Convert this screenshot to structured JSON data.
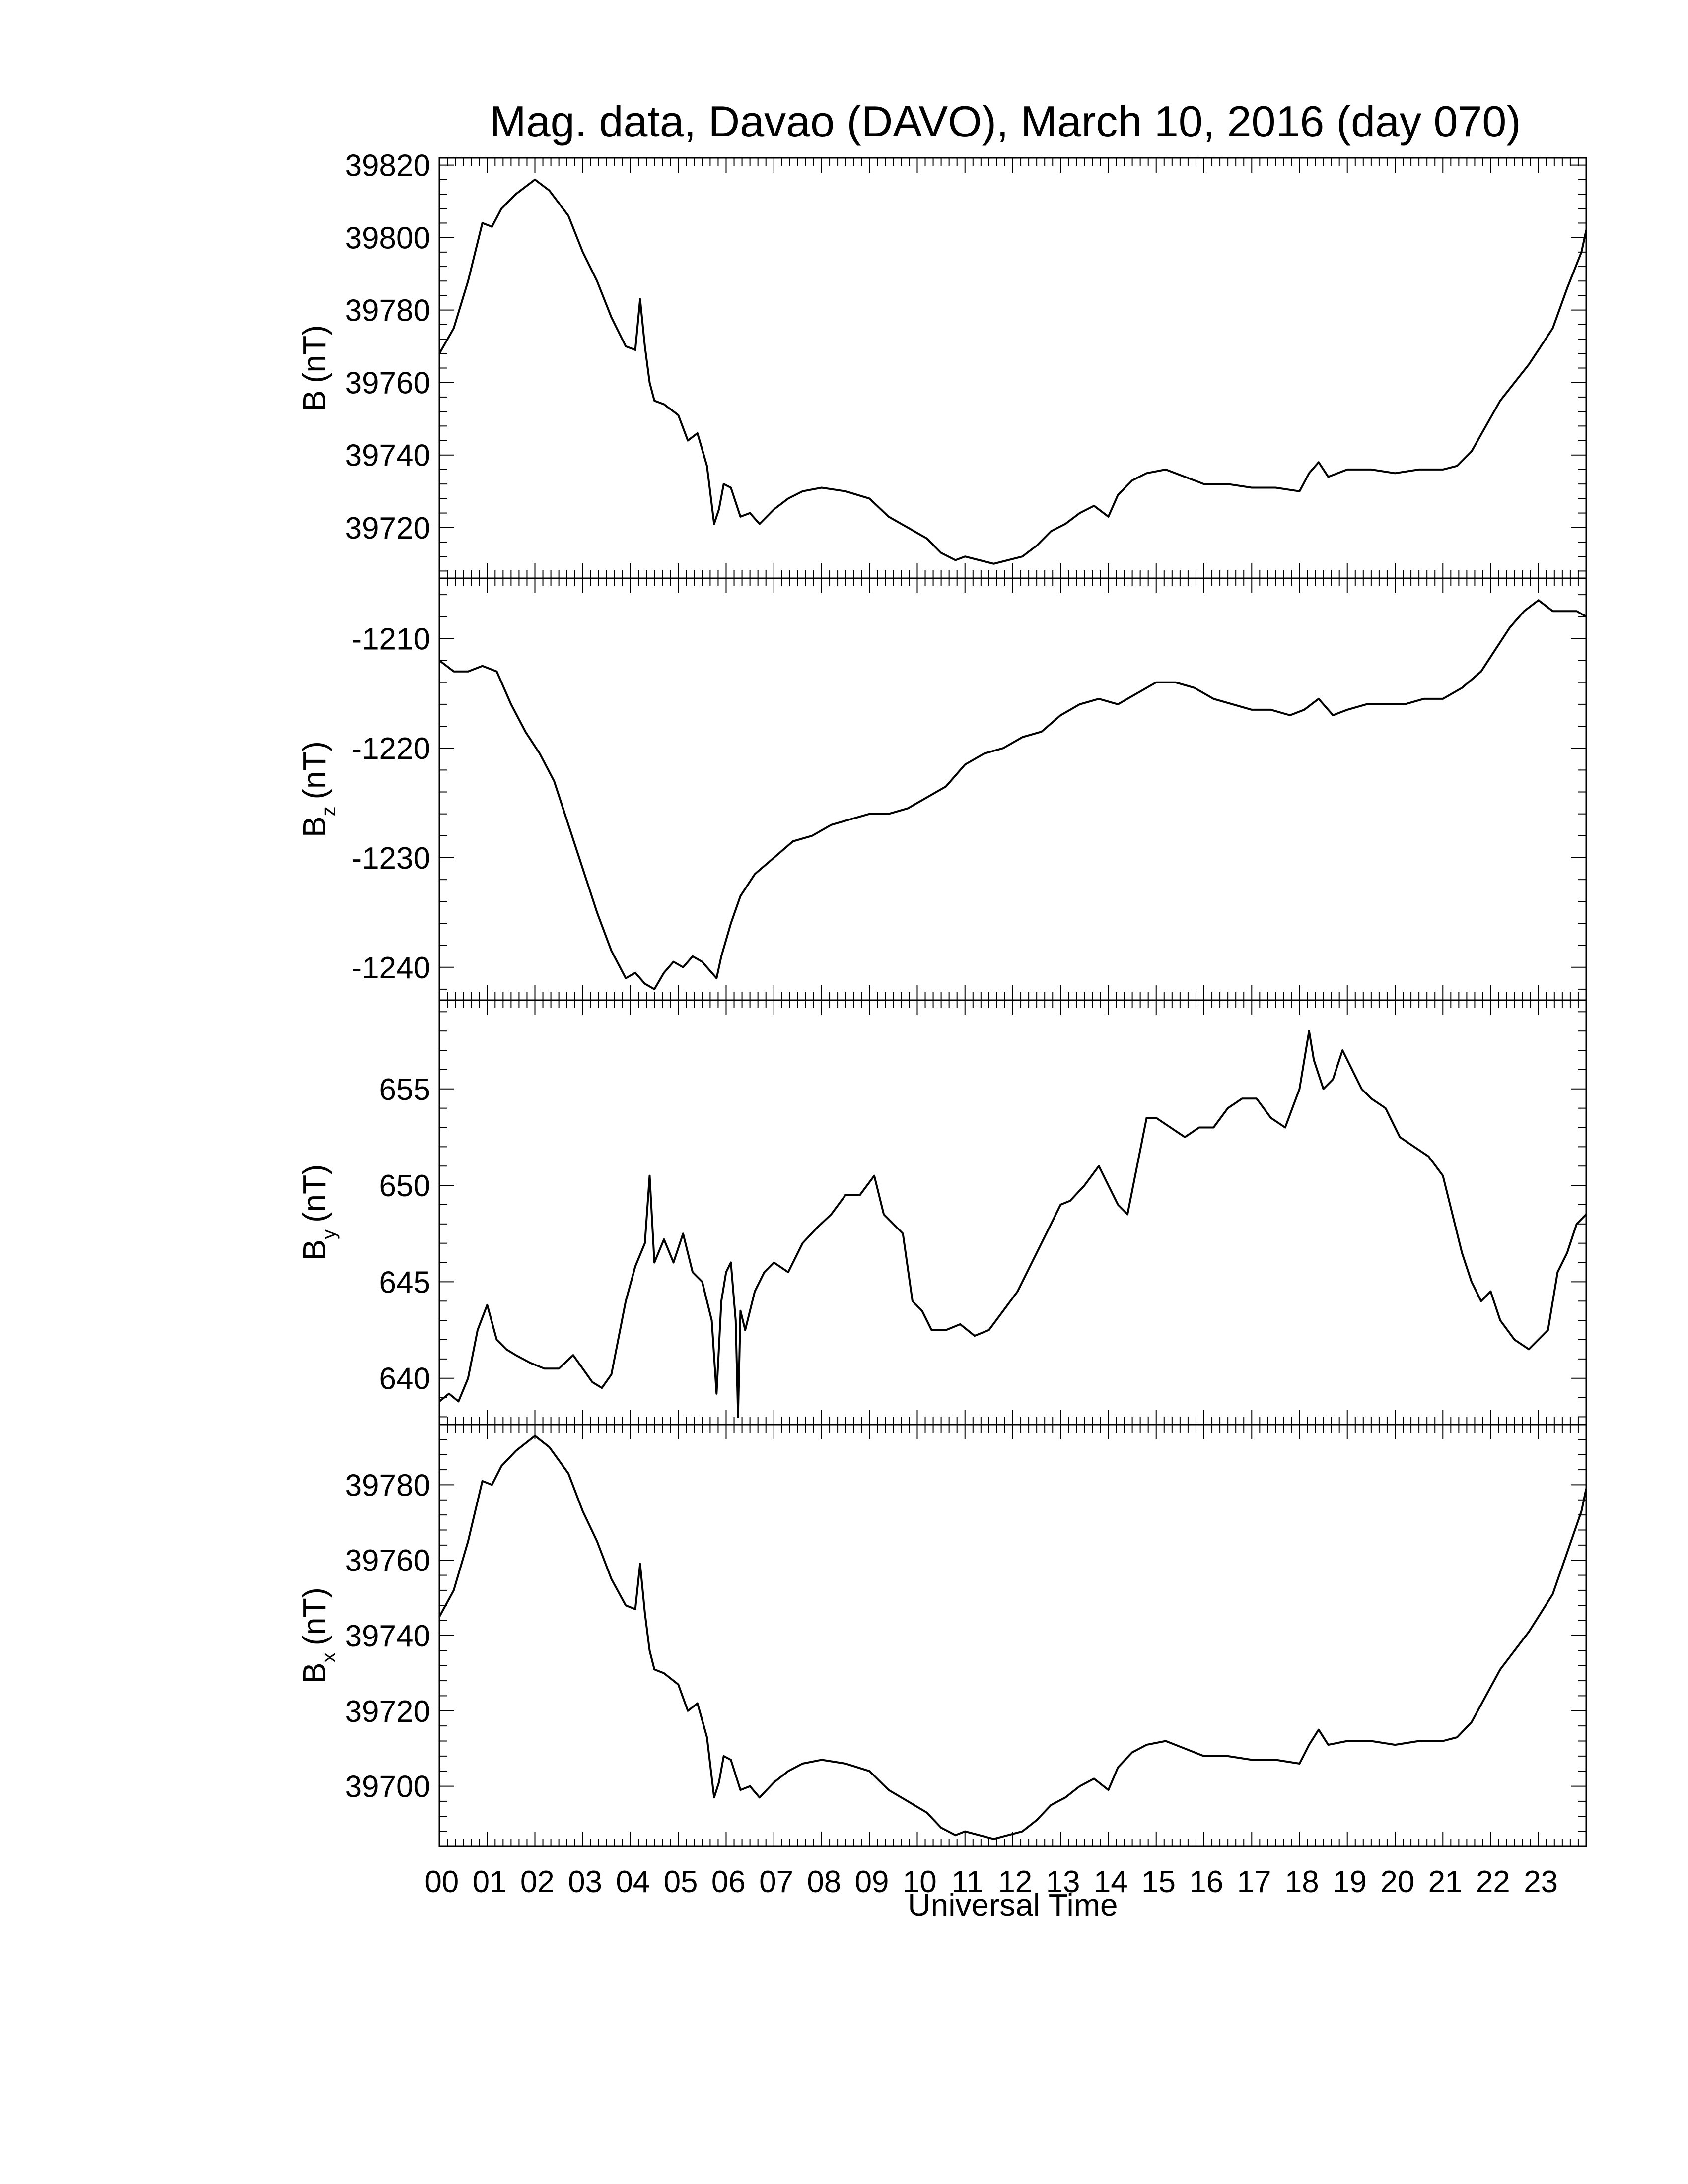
{
  "title": "Mag. data, Davao (DAVO), March 10, 2016 (day 070)",
  "xlabel": "Universal Time",
  "chart_data": [
    {
      "type": "line",
      "ylabel": "B (nT)",
      "ylabel_main": "B",
      "ylabel_sub": "",
      "ylabel_unit": "(nT)",
      "xlim": [
        0,
        24
      ],
      "ylim": [
        39706,
        39822
      ],
      "yticks": [
        39720,
        39740,
        39760,
        39780,
        39800,
        39820
      ],
      "ytick_labels": [
        "39720",
        "39740",
        "39760",
        "39780",
        "39800",
        "39820"
      ],
      "series": [
        {
          "x": [
            0,
            0.3,
            0.6,
            0.9,
            1.1,
            1.3,
            1.6,
            2.0,
            2.3,
            2.7,
            3.0,
            3.3,
            3.6,
            3.9,
            4.1,
            4.2,
            4.3,
            4.4,
            4.5,
            4.7,
            5.0,
            5.2,
            5.4,
            5.6,
            5.75,
            5.85,
            5.95,
            6.1,
            6.3,
            6.5,
            6.7,
            7.0,
            7.3,
            7.6,
            8.0,
            8.5,
            9.0,
            9.4,
            9.8,
            10.2,
            10.5,
            10.8,
            11.0,
            11.3,
            11.6,
            11.9,
            12.2,
            12.5,
            12.8,
            13.1,
            13.4,
            13.7,
            14.0,
            14.2,
            14.5,
            14.8,
            15.2,
            15.6,
            16.0,
            16.5,
            17.0,
            17.5,
            18.0,
            18.2,
            18.4,
            18.6,
            19.0,
            19.5,
            20.0,
            20.5,
            21.0,
            21.3,
            21.6,
            21.9,
            22.2,
            22.5,
            22.8,
            23.0,
            23.3,
            23.6,
            23.9,
            24.0
          ],
          "y": [
            39768,
            39775,
            39788,
            39804,
            39803,
            39808,
            39812,
            39816,
            39813,
            39806,
            39796,
            39788,
            39778,
            39770,
            39769,
            39783,
            39770,
            39760,
            39755,
            39754,
            39751,
            39744,
            39746,
            39737,
            39721,
            39725,
            39732,
            39731,
            39723,
            39724,
            39721,
            39725,
            39728,
            39730,
            39731,
            39730,
            39728,
            39723,
            39720,
            39717,
            39713,
            39711,
            39712,
            39711,
            39710,
            39711,
            39712,
            39715,
            39719,
            39721,
            39724,
            39726,
            39723,
            39729,
            39733,
            39735,
            39736,
            39734,
            39732,
            39732,
            39731,
            39731,
            39730,
            39735,
            39738,
            39734,
            39736,
            39736,
            39735,
            39736,
            39736,
            39737,
            39741,
            39748,
            39755,
            39760,
            39765,
            39769,
            39775,
            39786,
            39796,
            39802
          ]
        }
      ]
    },
    {
      "type": "line",
      "ylabel": "Bz (nT)",
      "ylabel_main": "B",
      "ylabel_sub": "z",
      "ylabel_unit": "(nT)",
      "xlim": [
        0,
        24
      ],
      "ylim": [
        -1243,
        -1204.5
      ],
      "yticks": [
        -1240,
        -1230,
        -1220,
        -1210
      ],
      "ytick_labels": [
        "-1240",
        "-1230",
        "-1220",
        "-1210"
      ],
      "series": [
        {
          "x": [
            0,
            0.3,
            0.6,
            0.9,
            1.2,
            1.5,
            1.8,
            2.1,
            2.4,
            2.7,
            3.0,
            3.3,
            3.6,
            3.9,
            4.1,
            4.3,
            4.5,
            4.7,
            4.9,
            5.1,
            5.3,
            5.5,
            5.7,
            5.8,
            5.9,
            6.1,
            6.3,
            6.6,
            7.0,
            7.4,
            7.8,
            8.2,
            8.6,
            9.0,
            9.4,
            9.8,
            10.2,
            10.6,
            11.0,
            11.4,
            11.8,
            12.2,
            12.6,
            13.0,
            13.4,
            13.8,
            14.2,
            14.6,
            15.0,
            15.4,
            15.8,
            16.2,
            16.6,
            17.0,
            17.4,
            17.8,
            18.1,
            18.4,
            18.7,
            19.0,
            19.4,
            19.8,
            20.2,
            20.6,
            21.0,
            21.4,
            21.8,
            22.1,
            22.4,
            22.7,
            23.0,
            23.3,
            23.6,
            23.8,
            24.0
          ],
          "y": [
            -1212,
            -1213,
            -1213,
            -1212.5,
            -1213,
            -1216,
            -1218.5,
            -1220.5,
            -1223,
            -1227,
            -1231,
            -1235,
            -1238.5,
            -1241,
            -1240.5,
            -1241.5,
            -1242,
            -1240.5,
            -1239.5,
            -1240,
            -1239,
            -1239.5,
            -1240.5,
            -1241,
            -1239,
            -1236,
            -1233.5,
            -1231.5,
            -1230,
            -1228.5,
            -1228,
            -1227,
            -1226.5,
            -1226,
            -1226,
            -1225.5,
            -1224.5,
            -1223.5,
            -1221.5,
            -1220.5,
            -1220,
            -1219,
            -1218.5,
            -1217,
            -1216,
            -1215.5,
            -1216,
            -1215,
            -1214,
            -1214,
            -1214.5,
            -1215.5,
            -1216,
            -1216.5,
            -1216.5,
            -1217,
            -1216.5,
            -1215.5,
            -1217,
            -1216.5,
            -1216,
            -1216,
            -1216,
            -1215.5,
            -1215.5,
            -1214.5,
            -1213,
            -1211,
            -1209,
            -1207.5,
            -1206.5,
            -1207.5,
            -1207.5,
            -1207.5,
            -1208
          ]
        }
      ]
    },
    {
      "type": "line",
      "ylabel": "By (nT)",
      "ylabel_main": "B",
      "ylabel_sub": "y",
      "ylabel_unit": "(nT)",
      "xlim": [
        0,
        24
      ],
      "ylim": [
        637.6,
        659.6
      ],
      "yticks": [
        640,
        645,
        650,
        655
      ],
      "ytick_labels": [
        "640",
        "645",
        "650",
        "655"
      ],
      "series": [
        {
          "x": [
            0,
            0.2,
            0.4,
            0.6,
            0.8,
            1.0,
            1.2,
            1.4,
            1.6,
            1.9,
            2.2,
            2.5,
            2.8,
            3.0,
            3.2,
            3.4,
            3.6,
            3.9,
            4.1,
            4.3,
            4.4,
            4.5,
            4.7,
            4.9,
            5.1,
            5.3,
            5.5,
            5.7,
            5.8,
            5.9,
            6.0,
            6.1,
            6.2,
            6.25,
            6.3,
            6.4,
            6.6,
            6.8,
            7.0,
            7.3,
            7.6,
            7.9,
            8.2,
            8.5,
            8.8,
            9.1,
            9.3,
            9.5,
            9.7,
            9.9,
            10.1,
            10.3,
            10.6,
            10.9,
            11.2,
            11.5,
            11.8,
            12.1,
            12.4,
            12.7,
            13.0,
            13.2,
            13.5,
            13.8,
            14.0,
            14.2,
            14.4,
            14.6,
            14.8,
            15.0,
            15.3,
            15.6,
            15.9,
            16.2,
            16.5,
            16.8,
            17.1,
            17.4,
            17.7,
            18.0,
            18.2,
            18.3,
            18.5,
            18.7,
            18.9,
            19.1,
            19.3,
            19.5,
            19.8,
            20.1,
            20.4,
            20.7,
            21.0,
            21.2,
            21.4,
            21.6,
            21.8,
            22.0,
            22.2,
            22.5,
            22.8,
            23.0,
            23.2,
            23.4,
            23.6,
            23.8,
            24.0
          ],
          "y": [
            638.8,
            639.2,
            638.8,
            640.0,
            642.5,
            643.8,
            642.0,
            641.5,
            641.2,
            640.8,
            640.5,
            640.5,
            641.2,
            640.5,
            639.8,
            639.5,
            640.2,
            644.0,
            645.8,
            647.0,
            650.5,
            646.0,
            647.2,
            646.0,
            647.5,
            645.5,
            645.0,
            643.0,
            639.2,
            644.0,
            645.5,
            646.0,
            643.0,
            638.0,
            643.5,
            642.5,
            644.5,
            645.5,
            646.0,
            645.5,
            647.0,
            647.8,
            648.5,
            649.5,
            649.5,
            650.5,
            648.5,
            648.0,
            647.5,
            644.0,
            643.5,
            642.5,
            642.5,
            642.8,
            642.2,
            642.5,
            643.5,
            644.5,
            646.0,
            647.5,
            649.0,
            649.2,
            650.0,
            651.0,
            650.0,
            649.0,
            648.5,
            651.0,
            653.5,
            653.5,
            653.0,
            652.5,
            653.0,
            653.0,
            654.0,
            654.5,
            654.5,
            653.5,
            653.0,
            655.0,
            658.0,
            656.5,
            655.0,
            655.5,
            657.0,
            656.0,
            655.0,
            654.5,
            654.0,
            652.5,
            652.0,
            651.5,
            650.5,
            648.5,
            646.5,
            645.0,
            644.0,
            644.5,
            643.0,
            642.0,
            641.5,
            642.0,
            642.5,
            645.5,
            646.5,
            648.0,
            648.5
          ]
        }
      ]
    },
    {
      "type": "line",
      "ylabel": "Bx (nT)",
      "ylabel_main": "B",
      "ylabel_sub": "x",
      "ylabel_unit": "(nT)",
      "xlim": [
        0,
        24
      ],
      "ylim": [
        39684,
        39796
      ],
      "yticks": [
        39700,
        39720,
        39740,
        39760,
        39780
      ],
      "ytick_labels": [
        "39700",
        "39720",
        "39740",
        "39760",
        "39780"
      ],
      "series": [
        {
          "x": [
            0,
            0.3,
            0.6,
            0.9,
            1.1,
            1.3,
            1.6,
            2.0,
            2.3,
            2.7,
            3.0,
            3.3,
            3.6,
            3.9,
            4.1,
            4.2,
            4.3,
            4.4,
            4.5,
            4.7,
            5.0,
            5.2,
            5.4,
            5.6,
            5.75,
            5.85,
            5.95,
            6.1,
            6.3,
            6.5,
            6.7,
            7.0,
            7.3,
            7.6,
            8.0,
            8.5,
            9.0,
            9.4,
            9.8,
            10.2,
            10.5,
            10.8,
            11.0,
            11.3,
            11.6,
            11.9,
            12.2,
            12.5,
            12.8,
            13.1,
            13.4,
            13.7,
            14.0,
            14.2,
            14.5,
            14.8,
            15.2,
            15.6,
            16.0,
            16.5,
            17.0,
            17.5,
            18.0,
            18.2,
            18.4,
            18.6,
            19.0,
            19.5,
            20.0,
            20.5,
            21.0,
            21.3,
            21.6,
            21.9,
            22.2,
            22.5,
            22.8,
            23.0,
            23.3,
            23.6,
            23.9,
            24.0
          ],
          "y": [
            39745,
            39752,
            39765,
            39781,
            39780,
            39785,
            39789,
            39793,
            39790,
            39783,
            39773,
            39765,
            39755,
            39748,
            39747,
            39759,
            39746,
            39736,
            39731,
            39730,
            39727,
            39720,
            39722,
            39713,
            39697,
            39701,
            39708,
            39707,
            39699,
            39700,
            39697,
            39701,
            39704,
            39706,
            39707,
            39706,
            39704,
            39699,
            39696,
            39693,
            39689,
            39687,
            39688,
            39687,
            39686,
            39687,
            39688,
            39691,
            39695,
            39697,
            39700,
            39702,
            39699,
            39705,
            39709,
            39711,
            39712,
            39710,
            39708,
            39708,
            39707,
            39707,
            39706,
            39711,
            39715,
            39711,
            39712,
            39712,
            39711,
            39712,
            39712,
            39713,
            39717,
            39724,
            39731,
            39736,
            39741,
            39745,
            39751,
            39762,
            39773,
            39779
          ]
        }
      ]
    }
  ],
  "x_ticks": [
    "00",
    "01",
    "02",
    "03",
    "04",
    "05",
    "06",
    "07",
    "08",
    "09",
    "10",
    "11",
    "12",
    "13",
    "14",
    "15",
    "16",
    "17",
    "18",
    "19",
    "20",
    "21",
    "22",
    "23"
  ]
}
